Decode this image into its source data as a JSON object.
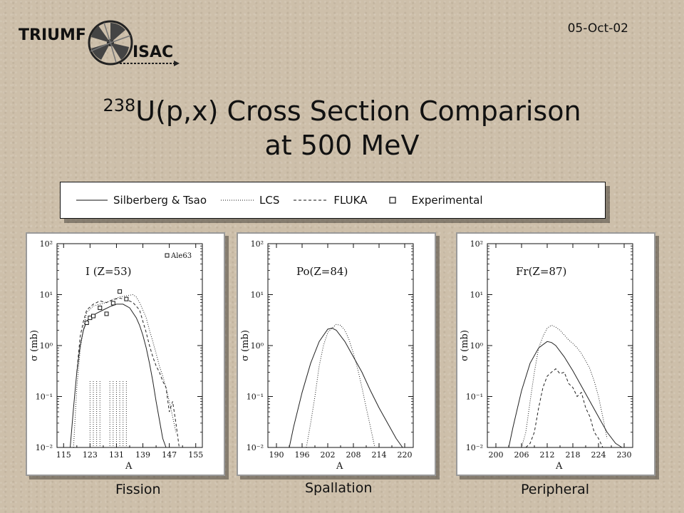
{
  "header": {
    "logo_text_primary": "TRIUMF",
    "logo_text_secondary": "ISAC",
    "date": "05-Oct-02"
  },
  "title": {
    "superscript": "238",
    "line1": "U(p,x) Cross Section Comparison",
    "line2": "at 500 MeV"
  },
  "legend": [
    {
      "label": "Silberberg & Tsao",
      "style": "solid"
    },
    {
      "label": "LCS",
      "style": "dotted"
    },
    {
      "label": "FLUKA",
      "style": "dashed"
    },
    {
      "label": "Experimental",
      "style": "square"
    }
  ],
  "chart_data": [
    {
      "type": "line",
      "caption": "Fission",
      "annotation": "I (Z=53)",
      "xlabel": "A",
      "ylabel": "σ (mb)",
      "yscale": "log",
      "xlim": [
        113,
        157
      ],
      "ylim": [
        0.01,
        100
      ],
      "xticks": [
        115,
        123,
        131,
        139,
        147,
        155
      ],
      "yticks": [
        {
          "v": 0.01,
          "label": "10⁻²"
        },
        {
          "v": 0.1,
          "label": "10⁻¹"
        },
        {
          "v": 1,
          "label": "10⁰"
        },
        {
          "v": 10,
          "label": "10¹"
        },
        {
          "v": 100,
          "label": "10²"
        }
      ],
      "experimental_label": "Ale63",
      "series": [
        {
          "name": "Silberberg & Tsao",
          "style": "solid",
          "x": [
            117,
            118,
            119,
            120,
            121,
            122,
            123,
            125,
            127,
            129,
            131,
            133,
            135,
            137,
            138,
            139,
            140,
            141,
            142,
            143,
            144,
            145,
            146
          ],
          "y": [
            0.01,
            0.06,
            0.3,
            1.0,
            2.0,
            3.0,
            3.6,
            4.3,
            5.0,
            5.8,
            6.5,
            6.5,
            5.5,
            3.5,
            2.5,
            1.6,
            0.9,
            0.45,
            0.2,
            0.08,
            0.035,
            0.015,
            0.01
          ]
        },
        {
          "name": "LCS",
          "style": "dotted",
          "x": [
            118,
            119,
            120,
            121,
            122,
            124,
            126,
            128,
            130,
            132,
            134,
            136,
            137,
            138,
            139,
            140,
            141,
            142,
            143,
            144,
            145,
            146,
            147,
            148,
            149
          ],
          "y": [
            0.01,
            0.15,
            0.8,
            2.2,
            4.5,
            6.0,
            6.5,
            7.0,
            8.0,
            9.0,
            9.5,
            10.0,
            9.0,
            7.0,
            5.0,
            3.5,
            2.0,
            1.2,
            0.7,
            0.4,
            0.25,
            0.15,
            0.08,
            0.04,
            0.02
          ]
        },
        {
          "name": "FLUKA",
          "style": "dashed",
          "x": [
            119,
            120,
            121,
            122,
            124,
            126,
            128,
            130,
            132,
            134,
            136,
            138,
            139,
            140,
            141,
            142,
            143,
            144,
            145,
            146,
            147,
            148,
            149,
            150
          ],
          "y": [
            0.3,
            1.5,
            3.0,
            5.0,
            6.5,
            7.5,
            7.0,
            8.0,
            8.5,
            8.0,
            7.0,
            5.0,
            3.0,
            1.8,
            1.0,
            0.6,
            0.4,
            0.3,
            0.2,
            0.15,
            0.05,
            0.08,
            0.03,
            0.01
          ]
        },
        {
          "name": "Experimental",
          "style": "square",
          "x": [
            122,
            123,
            124,
            126,
            128,
            130,
            132,
            134
          ],
          "y": [
            2.8,
            3.5,
            3.8,
            5.5,
            4.2,
            6.8,
            11.5,
            8.2
          ]
        }
      ]
    },
    {
      "type": "line",
      "caption": "Spallation",
      "annotation": "Po(Z=84)",
      "xlabel": "A",
      "ylabel": "σ (mb)",
      "yscale": "log",
      "xlim": [
        188,
        222
      ],
      "ylim": [
        0.01,
        100
      ],
      "xticks": [
        190,
        196,
        202,
        208,
        214,
        220
      ],
      "yticks": [
        {
          "v": 0.01,
          "label": "10⁻²"
        },
        {
          "v": 0.1,
          "label": "10⁻¹"
        },
        {
          "v": 1,
          "label": "10⁰"
        },
        {
          "v": 10,
          "label": "10¹"
        },
        {
          "v": 100,
          "label": "10²"
        }
      ],
      "series": [
        {
          "name": "Silberberg & Tsao",
          "style": "solid",
          "x": [
            193,
            194,
            196,
            198,
            200,
            202,
            203,
            204,
            206,
            208,
            210,
            212,
            214,
            216,
            218,
            219.5
          ],
          "y": [
            0.01,
            0.025,
            0.12,
            0.45,
            1.2,
            2.1,
            2.2,
            2.0,
            1.2,
            0.6,
            0.3,
            0.13,
            0.06,
            0.03,
            0.015,
            0.01
          ]
        },
        {
          "name": "LCS",
          "style": "dotted",
          "x": [
            197,
            198,
            199,
            200,
            201,
            202,
            203,
            204,
            205,
            206,
            207,
            208,
            209,
            210,
            211,
            212,
            213
          ],
          "y": [
            0.01,
            0.03,
            0.1,
            0.4,
            1.0,
            1.8,
            2.2,
            2.6,
            2.5,
            2.0,
            1.3,
            0.7,
            0.35,
            0.15,
            0.06,
            0.025,
            0.01
          ]
        }
      ]
    },
    {
      "type": "line",
      "caption": "Peripheral",
      "annotation": "Fr(Z=87)",
      "xlabel": "A",
      "ylabel": "σ (mb)",
      "yscale": "log",
      "xlim": [
        198,
        232
      ],
      "ylim": [
        0.01,
        100
      ],
      "xticks": [
        200,
        206,
        212,
        218,
        224,
        230
      ],
      "yticks": [
        {
          "v": 0.01,
          "label": "10⁻²"
        },
        {
          "v": 0.1,
          "label": "10⁻¹"
        },
        {
          "v": 1,
          "label": "10⁰"
        },
        {
          "v": 10,
          "label": "10¹"
        },
        {
          "v": 100,
          "label": "10²"
        }
      ],
      "series": [
        {
          "name": "Silberberg & Tsao",
          "style": "solid",
          "x": [
            203,
            204,
            206,
            208,
            210,
            212,
            213,
            214,
            216,
            218,
            220,
            222,
            224,
            226,
            228,
            229.5
          ],
          "y": [
            0.01,
            0.025,
            0.13,
            0.45,
            0.9,
            1.2,
            1.15,
            1.0,
            0.6,
            0.32,
            0.16,
            0.08,
            0.04,
            0.02,
            0.012,
            0.01
          ]
        },
        {
          "name": "LCS",
          "style": "dotted",
          "x": [
            206,
            207,
            208,
            209,
            210,
            211,
            212,
            213,
            214,
            215,
            216,
            217,
            218,
            219,
            220,
            221,
            222,
            223,
            224,
            225,
            226
          ],
          "y": [
            0.01,
            0.02,
            0.08,
            0.3,
            0.9,
            1.5,
            2.2,
            2.5,
            2.3,
            2.0,
            1.6,
            1.3,
            1.1,
            0.9,
            0.7,
            0.5,
            0.35,
            0.2,
            0.1,
            0.04,
            0.015
          ]
        },
        {
          "name": "FLUKA",
          "style": "dashed",
          "x": [
            207,
            208,
            209,
            210,
            211,
            212,
            213,
            214,
            215,
            216,
            217,
            218,
            219,
            220,
            221,
            222,
            223,
            224,
            225
          ],
          "y": [
            0.01,
            0.012,
            0.02,
            0.06,
            0.15,
            0.25,
            0.3,
            0.35,
            0.28,
            0.3,
            0.18,
            0.15,
            0.1,
            0.12,
            0.06,
            0.04,
            0.02,
            0.015,
            0.01
          ]
        }
      ]
    }
  ]
}
